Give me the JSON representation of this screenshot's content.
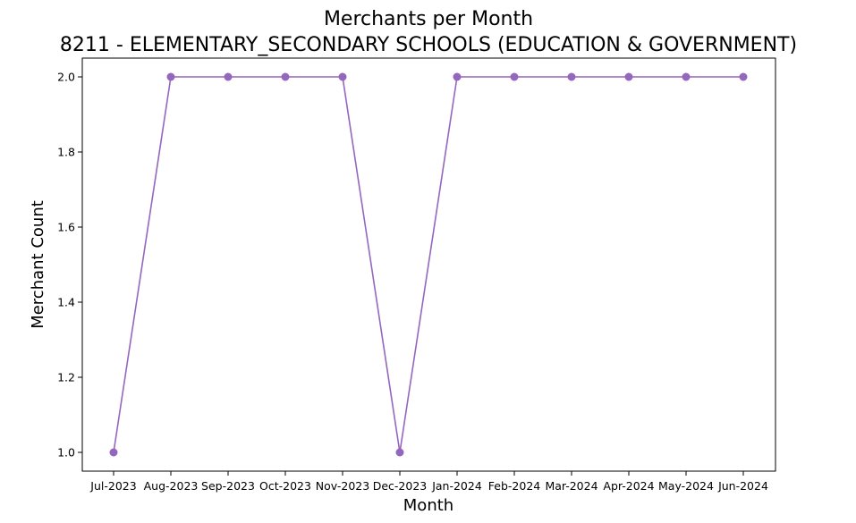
{
  "chart_data": {
    "type": "line",
    "title": "Merchants per Month",
    "subtitle": "8211 - ELEMENTARY_SECONDARY SCHOOLS (EDUCATION & GOVERNMENT)",
    "xlabel": "Month",
    "ylabel": "Merchant Count",
    "categories": [
      "Jul-2023",
      "Aug-2023",
      "Sep-2023",
      "Oct-2023",
      "Nov-2023",
      "Dec-2023",
      "Jan-2024",
      "Feb-2024",
      "Mar-2024",
      "Apr-2024",
      "May-2024",
      "Jun-2024"
    ],
    "series": [
      {
        "values": [
          1,
          2,
          2,
          2,
          2,
          1,
          2,
          2,
          2,
          2,
          2,
          2
        ],
        "color": "#9467bd",
        "marker": "circle"
      }
    ],
    "ylim": [
      0.95,
      2.05
    ],
    "yticks": [
      1.0,
      1.2,
      1.4,
      1.6,
      1.8,
      2.0
    ],
    "ytick_labels": [
      "1.0",
      "1.2",
      "1.4",
      "1.6",
      "1.8",
      "2.0"
    ],
    "grid": false,
    "legend": "none"
  }
}
